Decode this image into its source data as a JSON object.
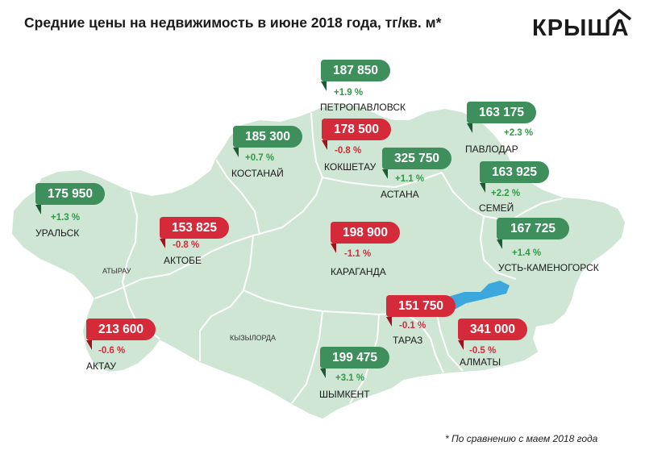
{
  "title": "Средние цены на недвижимость в июне 2018 года, тг/кв. м*",
  "logo": {
    "text": "КРЫША"
  },
  "colors": {
    "up": "#3f8f5c",
    "down": "#d42a3a",
    "up_text": "#2f9a46",
    "down_text": "#d42a3a",
    "land": "#cfe6d4",
    "border": "#ffffff",
    "lake": "#3aa8dc"
  },
  "regions": [
    {
      "id": "petropavlovsk",
      "city": "ПЕТРОПАВЛОВСК",
      "price": "187 850",
      "change": "+1.9 %",
      "trend": "up"
    },
    {
      "id": "kostanay",
      "city": "КОСТАНАЙ",
      "price": "185 300",
      "change": "+0.7 %",
      "trend": "up"
    },
    {
      "id": "kokshetau",
      "city": "КОКШЕТАУ",
      "price": "178 500",
      "change": "-0.8 %",
      "trend": "down"
    },
    {
      "id": "astana",
      "city": "АСТАНА",
      "price": "325 750",
      "change": "+1.1 %",
      "trend": "up"
    },
    {
      "id": "pavlodar",
      "city": "ПАВЛОДАР",
      "price": "163 175",
      "change": "+2.3 %",
      "trend": "up"
    },
    {
      "id": "semey",
      "city": "СЕМЕЙ",
      "price": "163 925",
      "change": "+2.2 %",
      "trend": "up"
    },
    {
      "id": "uralsk",
      "city": "УРАЛЬСК",
      "price": "175 950",
      "change": "+1.3 %",
      "trend": "up"
    },
    {
      "id": "aktobe",
      "city": "АКТОБЕ",
      "price": "153 825",
      "change": "-0.8 %",
      "trend": "down"
    },
    {
      "id": "karaganda",
      "city": "КАРАГАНДА",
      "price": "198 900",
      "change": "-1.1 %",
      "trend": "down"
    },
    {
      "id": "ust-kamenogorsk",
      "city": "УСТЬ-КАМЕНОГОРСК",
      "price": "167 725",
      "change": "+1.4 %",
      "trend": "up"
    },
    {
      "id": "taraz",
      "city": "ТАРАЗ",
      "price": "151 750",
      "change": "-0.1 %",
      "trend": "down"
    },
    {
      "id": "aktau",
      "city": "АКТАУ",
      "price": "213 600",
      "change": "-0.6 %",
      "trend": "down"
    },
    {
      "id": "almaty",
      "city": "АЛМАТЫ",
      "price": "341 000",
      "change": "-0.5 %",
      "trend": "down"
    },
    {
      "id": "shymkent",
      "city": "ШЫМКЕНТ",
      "price": "199 475",
      "change": "+3.1 %",
      "trend": "up"
    }
  ],
  "area_labels": {
    "atyrau": "АТЫРАУ",
    "kyzylorda": "КЫЗЫЛОРДА"
  },
  "footnote": "* По сравнению с маем 2018 года"
}
